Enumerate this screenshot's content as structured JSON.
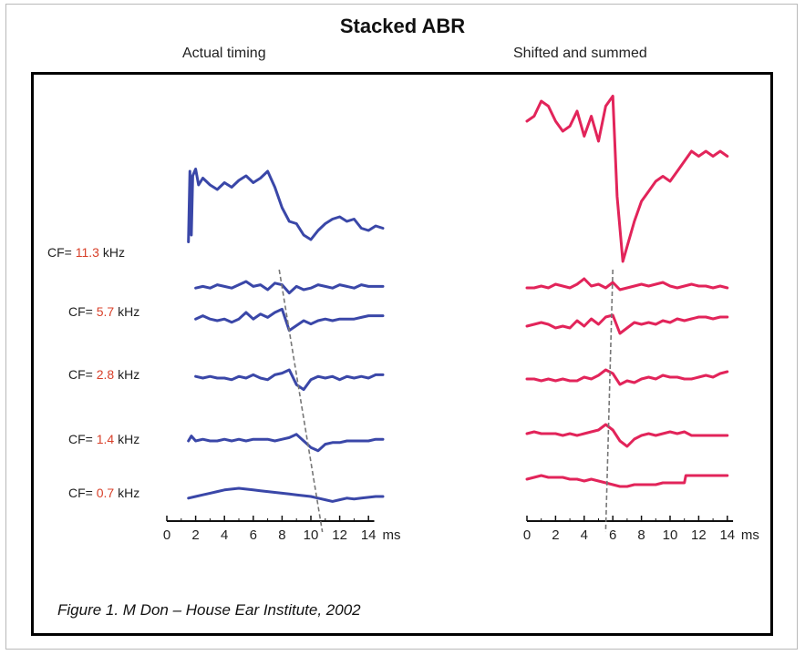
{
  "title": "Stacked ABR",
  "panels": {
    "left_subtitle": "Actual timing",
    "right_subtitle": "Shifted and summed"
  },
  "caption": "Figure 1. M Don – House Ear Institute, 2002",
  "colors": {
    "left_trace": "#3a47a8",
    "right_trace": "#e2245a",
    "cf_value": "#d8402a",
    "latency_line": "#777777"
  },
  "cf_labels": [
    {
      "prefix": "CF=",
      "value": "11.3",
      "unit": "kHz"
    },
    {
      "prefix": "CF=",
      "value": "5.7",
      "unit": "kHz"
    },
    {
      "prefix": "CF=",
      "value": "2.8",
      "unit": "kHz"
    },
    {
      "prefix": "CF=",
      "value": "1.4",
      "unit": "kHz"
    },
    {
      "prefix": "CF=",
      "value": "0.7",
      "unit": "kHz"
    }
  ],
  "chart_data": [
    {
      "type": "line",
      "title": "Actual timing",
      "xlabel": "ms",
      "xlim": [
        0,
        15
      ],
      "xticks": [
        0,
        2,
        4,
        6,
        8,
        10,
        12,
        14
      ],
      "x_unit": "ms",
      "series": [
        {
          "name": "",
          "x": [
            1.5,
            1.6,
            1.7,
            1.8,
            2.0,
            2.2,
            2.5,
            3.0,
            3.5,
            4.0,
            4.5,
            5.0,
            5.5,
            6.0,
            6.5,
            7.0,
            7.5,
            8.0,
            8.5,
            9.0,
            9.5,
            10.0,
            10.5,
            11.0,
            11.5,
            12.0,
            12.5,
            13.0,
            13.5,
            14.0,
            14.5,
            15.0
          ],
          "y": [
            0.1,
            3.2,
            0.4,
            3.0,
            3.3,
            2.6,
            2.9,
            2.6,
            2.4,
            2.7,
            2.5,
            2.8,
            3.0,
            2.7,
            2.9,
            3.2,
            2.5,
            1.6,
            1.0,
            0.9,
            0.4,
            0.2,
            0.6,
            0.9,
            1.1,
            1.2,
            1.0,
            1.1,
            0.7,
            0.6,
            0.8,
            0.7
          ]
        },
        {
          "name": "",
          "x": [
            2,
            2.5,
            3,
            3.5,
            4,
            4.5,
            5,
            5.5,
            6,
            6.5,
            7,
            7.5,
            8,
            8.5,
            9,
            9.5,
            10,
            10.5,
            11,
            11.5,
            12,
            12.5,
            13,
            13.5,
            14,
            14.5,
            15
          ],
          "y": [
            0.1,
            0.2,
            0.1,
            0.3,
            0.2,
            0.1,
            0.3,
            0.5,
            0.2,
            0.3,
            0.0,
            0.4,
            0.3,
            -0.2,
            0.2,
            0.0,
            0.1,
            0.3,
            0.2,
            0.1,
            0.3,
            0.2,
            0.1,
            0.3,
            0.2,
            0.2,
            0.2
          ]
        },
        {
          "name": "",
          "x": [
            2,
            2.5,
            3,
            3.5,
            4,
            4.5,
            5,
            5.5,
            6,
            6.5,
            7,
            7.5,
            8,
            8.5,
            9,
            9.5,
            10,
            10.5,
            11,
            11.5,
            12,
            12.5,
            13,
            13.5,
            14,
            14.5,
            15
          ],
          "y": [
            0.1,
            0.3,
            0.1,
            0.0,
            0.1,
            -0.1,
            0.1,
            0.5,
            0.1,
            0.4,
            0.2,
            0.5,
            0.7,
            -0.6,
            -0.3,
            0.0,
            -0.2,
            0.0,
            0.1,
            0.0,
            0.1,
            0.1,
            0.1,
            0.2,
            0.3,
            0.3,
            0.3
          ]
        },
        {
          "name": "",
          "x": [
            2,
            2.5,
            3,
            3.5,
            4,
            4.5,
            5,
            5.5,
            6,
            6.5,
            7,
            7.5,
            8,
            8.5,
            9,
            9.5,
            10,
            10.5,
            11,
            11.5,
            12,
            12.5,
            13,
            13.5,
            14,
            14.5,
            15
          ],
          "y": [
            0.1,
            0.0,
            0.1,
            0.0,
            0.0,
            -0.1,
            0.1,
            0.0,
            0.2,
            0.0,
            -0.1,
            0.2,
            0.3,
            0.5,
            -0.4,
            -0.7,
            -0.1,
            0.1,
            0.0,
            0.1,
            -0.1,
            0.1,
            0.0,
            0.1,
            0.0,
            0.2,
            0.2
          ]
        },
        {
          "name": "",
          "x": [
            1.5,
            1.7,
            2,
            2.5,
            3,
            3.5,
            4,
            4.5,
            5,
            5.5,
            6,
            6.5,
            7,
            7.5,
            8,
            8.5,
            9,
            9.5,
            10,
            10.5,
            11,
            11.5,
            12,
            12.5,
            13,
            13.5,
            14,
            14.5,
            15
          ],
          "y": [
            0.0,
            0.3,
            0.0,
            0.1,
            0.0,
            0.0,
            0.1,
            0.0,
            0.1,
            0.0,
            0.1,
            0.1,
            0.1,
            0.0,
            0.1,
            0.2,
            0.4,
            0.0,
            -0.4,
            -0.6,
            -0.2,
            -0.1,
            -0.1,
            0.0,
            0.0,
            0.0,
            0.0,
            0.1,
            0.1
          ]
        },
        {
          "name": "",
          "x": [
            1.5,
            2,
            2.5,
            3,
            3.5,
            4,
            4.5,
            5,
            5.5,
            6,
            6.5,
            7,
            7.5,
            8,
            8.5,
            9,
            9.5,
            10,
            10.5,
            11,
            11.5,
            12,
            12.5,
            13,
            13.5,
            14,
            14.5,
            15
          ],
          "y": [
            -0.1,
            0.0,
            0.1,
            0.2,
            0.3,
            0.4,
            0.45,
            0.5,
            0.45,
            0.4,
            0.35,
            0.3,
            0.25,
            0.2,
            0.15,
            0.1,
            0.05,
            0.0,
            -0.1,
            -0.2,
            -0.3,
            -0.2,
            -0.1,
            -0.15,
            -0.1,
            -0.05,
            0.0,
            0.0
          ]
        }
      ],
      "latency_line": {
        "x": [
          7.8,
          10.8
        ],
        "style": "dashed"
      }
    },
    {
      "type": "line",
      "title": "Shifted and summed",
      "xlabel": "ms",
      "xlim": [
        0,
        15
      ],
      "xticks": [
        0,
        2,
        4,
        6,
        8,
        10,
        12,
        14
      ],
      "x_unit": "ms",
      "series": [
        {
          "name": "",
          "x": [
            0,
            0.5,
            1.0,
            1.5,
            2.0,
            2.5,
            3.0,
            3.5,
            4.0,
            4.5,
            5.0,
            5.5,
            6.0,
            6.3,
            6.7,
            7.0,
            7.5,
            8.0,
            8.5,
            9.0,
            9.5,
            10.0,
            10.5,
            11.0,
            11.5,
            12.0,
            12.5,
            13.0,
            13.5,
            14.0
          ],
          "y": [
            3.0,
            3.1,
            3.4,
            3.3,
            3.0,
            2.8,
            2.9,
            3.2,
            2.7,
            3.1,
            2.6,
            3.3,
            3.5,
            1.5,
            0.2,
            0.5,
            1.0,
            1.4,
            1.6,
            1.8,
            1.9,
            1.8,
            2.0,
            2.2,
            2.4,
            2.3,
            2.4,
            2.3,
            2.4,
            2.3
          ]
        },
        {
          "name": "",
          "x": [
            0,
            0.5,
            1,
            1.5,
            2,
            2.5,
            3,
            3.5,
            4,
            4.5,
            5,
            5.5,
            6,
            6.5,
            7,
            7.5,
            8,
            8.5,
            9,
            9.5,
            10,
            10.5,
            11,
            11.5,
            12,
            12.5,
            13,
            13.5,
            14
          ],
          "y": [
            0.1,
            0.1,
            0.2,
            0.1,
            0.3,
            0.2,
            0.1,
            0.3,
            0.6,
            0.2,
            0.3,
            0.1,
            0.4,
            0.0,
            0.1,
            0.2,
            0.3,
            0.2,
            0.3,
            0.4,
            0.2,
            0.1,
            0.2,
            0.3,
            0.2,
            0.2,
            0.1,
            0.2,
            0.1
          ]
        },
        {
          "name": "",
          "x": [
            0,
            0.5,
            1,
            1.5,
            2,
            2.5,
            3,
            3.5,
            4,
            4.5,
            5,
            5.5,
            6,
            6.5,
            7,
            7.5,
            8,
            8.5,
            9,
            9.5,
            10,
            10.5,
            11,
            11.5,
            12,
            12.5,
            13,
            13.5,
            14
          ],
          "y": [
            0.1,
            0.2,
            0.3,
            0.2,
            0.0,
            0.1,
            0.0,
            0.4,
            0.1,
            0.5,
            0.2,
            0.6,
            0.7,
            -0.3,
            0.0,
            0.3,
            0.2,
            0.3,
            0.2,
            0.4,
            0.3,
            0.5,
            0.4,
            0.5,
            0.6,
            0.6,
            0.5,
            0.6,
            0.6
          ]
        },
        {
          "name": "",
          "x": [
            0,
            0.5,
            1,
            1.5,
            2,
            2.5,
            3,
            3.5,
            4,
            4.5,
            5,
            5.5,
            6,
            6.5,
            7,
            7.5,
            8,
            8.5,
            9,
            9.5,
            10,
            10.5,
            11,
            11.5,
            12,
            12.5,
            13,
            13.5,
            14
          ],
          "y": [
            0.1,
            0.1,
            0.0,
            0.1,
            0.0,
            0.1,
            0.0,
            0.0,
            0.2,
            0.1,
            0.3,
            0.6,
            0.4,
            -0.2,
            0.0,
            -0.1,
            0.1,
            0.2,
            0.1,
            0.3,
            0.2,
            0.2,
            0.1,
            0.1,
            0.2,
            0.3,
            0.2,
            0.4,
            0.5
          ]
        },
        {
          "name": "",
          "x": [
            0,
            0.5,
            1,
            1.5,
            2,
            2.5,
            3,
            3.5,
            4,
            4.5,
            5,
            5.5,
            6,
            6.5,
            7,
            7.5,
            8,
            8.5,
            9,
            9.5,
            10,
            10.5,
            11,
            11.5,
            12,
            12.5,
            13,
            13.5,
            14
          ],
          "y": [
            0.1,
            0.2,
            0.1,
            0.1,
            0.1,
            0.0,
            0.1,
            0.0,
            0.1,
            0.2,
            0.3,
            0.6,
            0.3,
            -0.3,
            -0.6,
            -0.2,
            0.0,
            0.1,
            0.0,
            0.1,
            0.2,
            0.1,
            0.2,
            0.0,
            0.0,
            0.0,
            0.0,
            0.0,
            0.0
          ]
        },
        {
          "name": "",
          "x": [
            0,
            0.5,
            1,
            1.5,
            2,
            2.5,
            3,
            3.5,
            4,
            4.5,
            5,
            5.5,
            6,
            6.5,
            7,
            7.5,
            8,
            8.5,
            9,
            9.5,
            10,
            10.5,
            11,
            11.1,
            11.5,
            12,
            12.5,
            13,
            13.5,
            14
          ],
          "y": [
            0.1,
            0.2,
            0.3,
            0.2,
            0.2,
            0.2,
            0.1,
            0.1,
            0.0,
            0.1,
            0.0,
            -0.1,
            -0.2,
            -0.3,
            -0.3,
            -0.2,
            -0.2,
            -0.2,
            -0.2,
            -0.1,
            -0.1,
            -0.1,
            -0.1,
            0.3,
            0.3,
            0.3,
            0.3,
            0.3,
            0.3,
            0.3
          ]
        }
      ],
      "latency_line": {
        "x": [
          6.0,
          5.5
        ],
        "style": "dashed"
      }
    }
  ]
}
